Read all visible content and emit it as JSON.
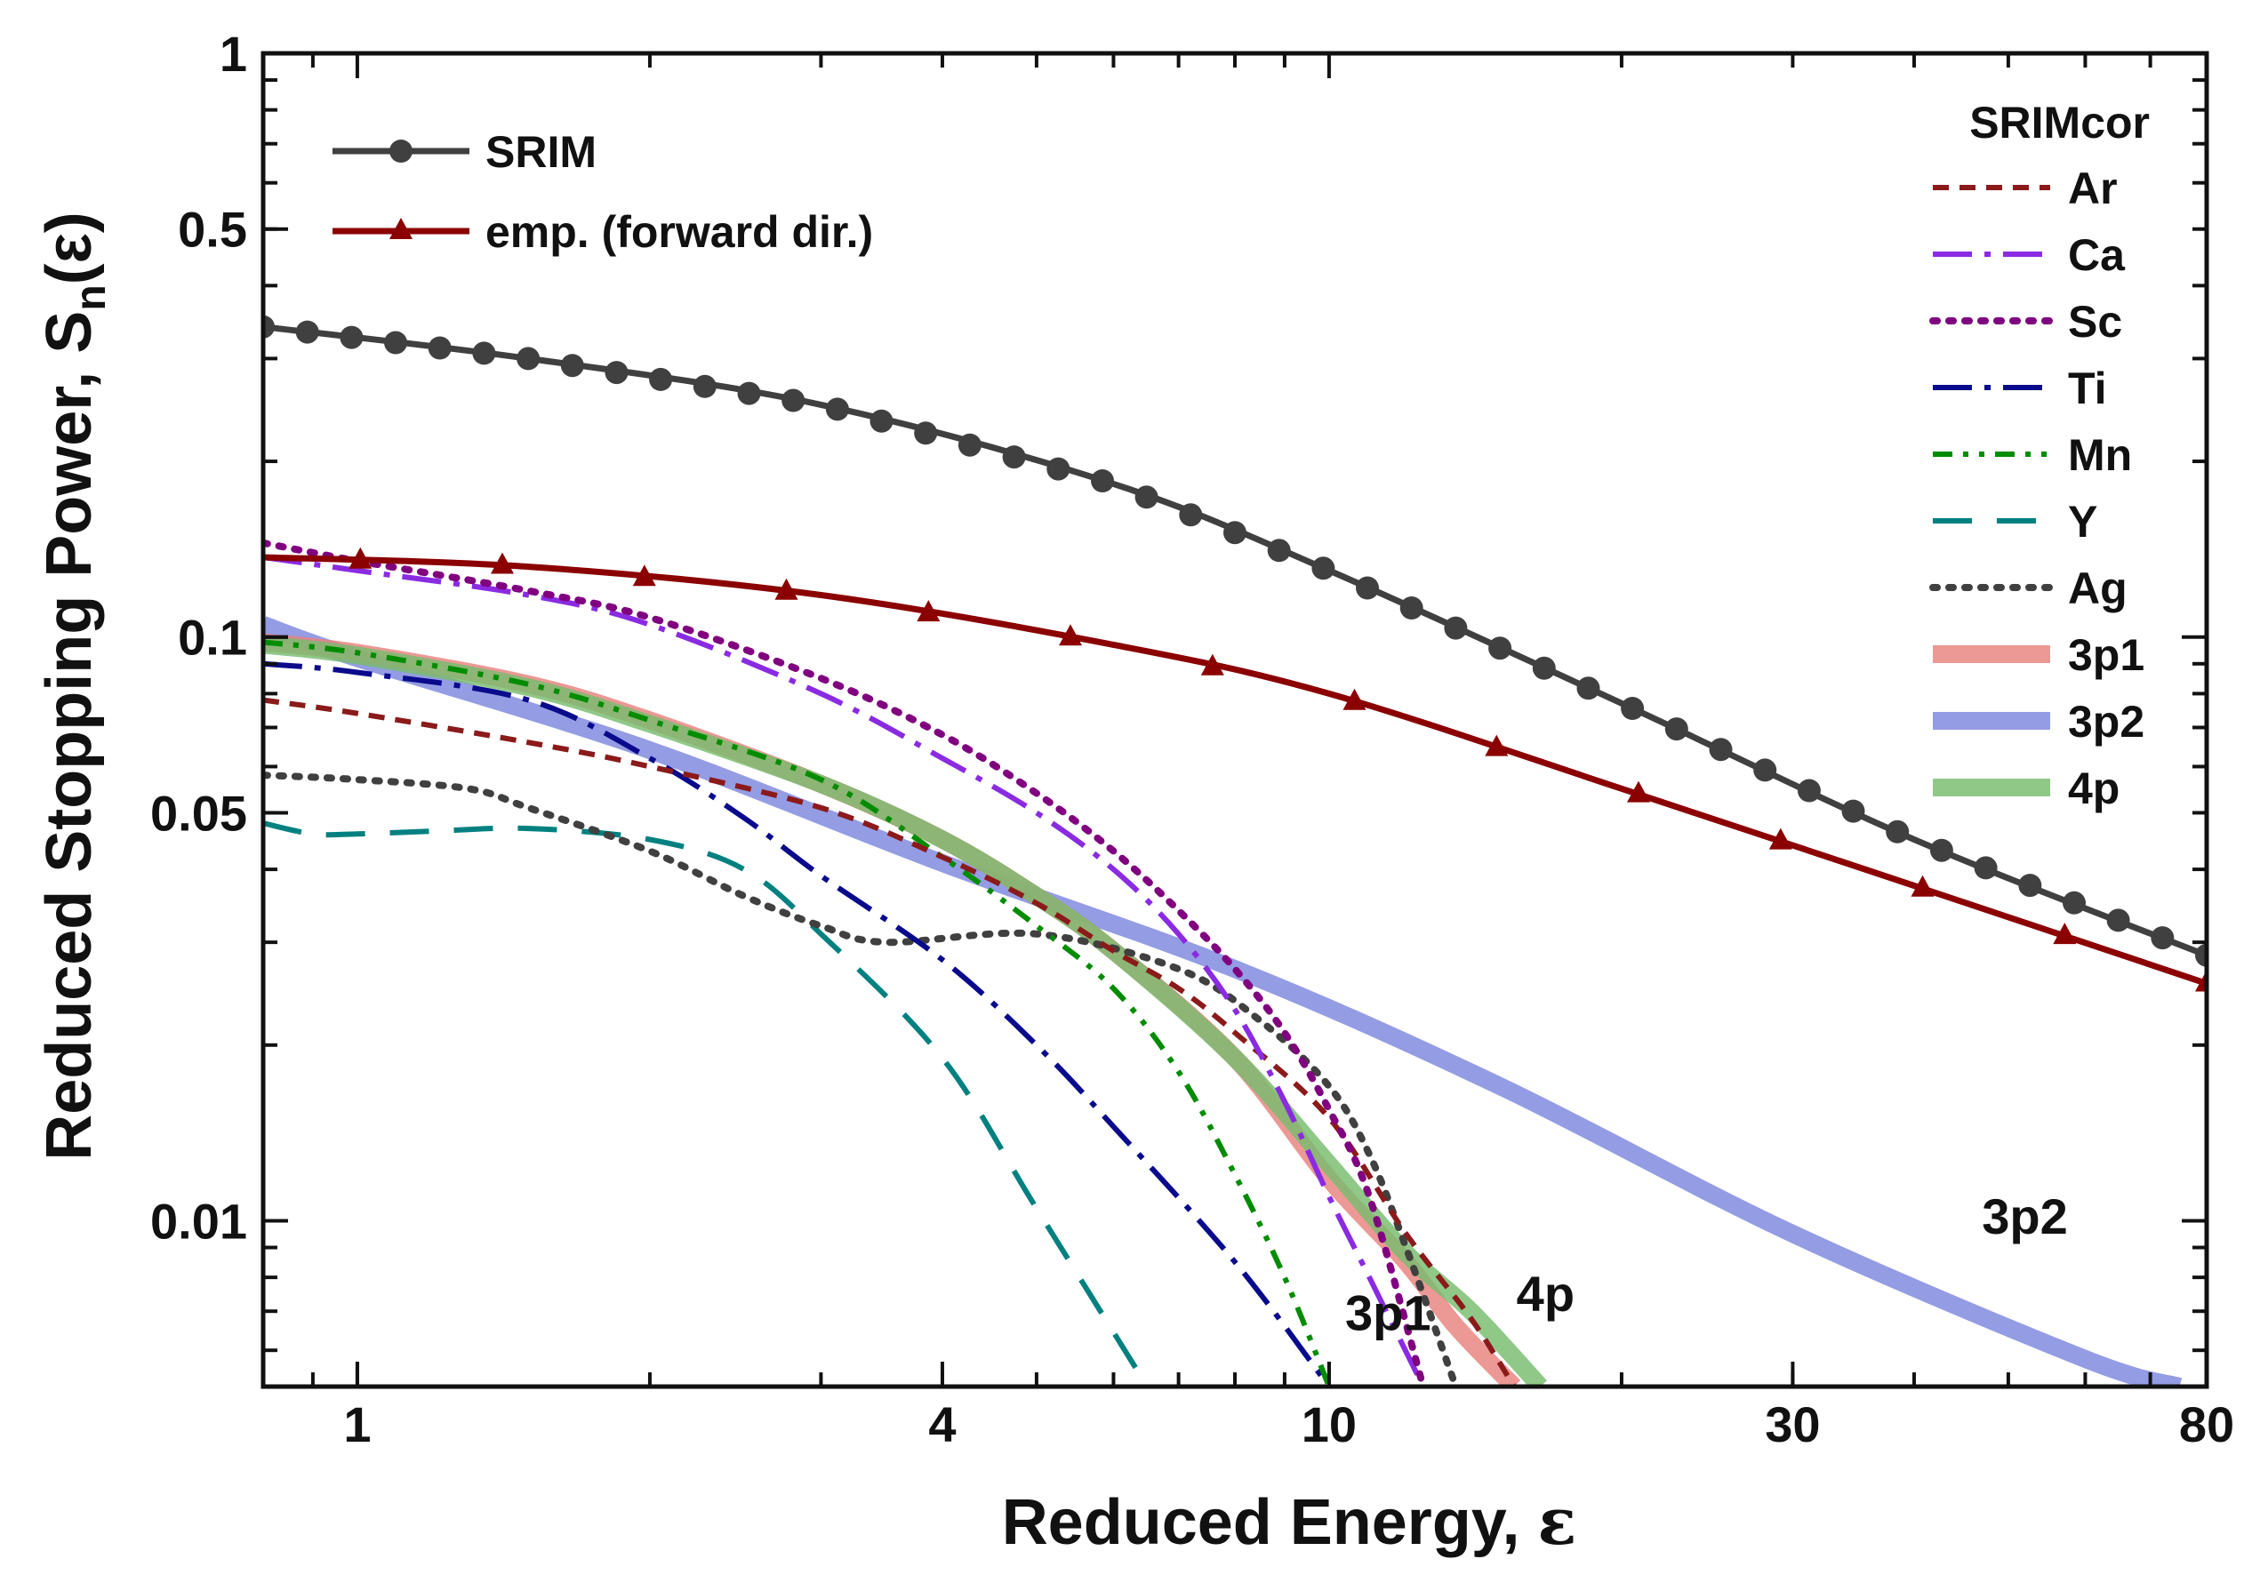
{
  "chart_data": {
    "type": "line",
    "xlabel_main": "Reduced Energy, ",
    "xlabel_symbol": "ε",
    "ylabel_main": "Reduced Stopping Power, S",
    "ylabel_sub": "n",
    "ylabel_tail": "(ε)",
    "x_scale": "log",
    "y_scale": "log",
    "xlim": [
      0.8,
      80
    ],
    "ylim": [
      0.0052,
      1
    ],
    "x_ticks": [
      {
        "value": 1,
        "label": "1"
      },
      {
        "value": 4,
        "label": "4"
      },
      {
        "value": 10,
        "label": "10"
      },
      {
        "value": 30,
        "label": "30"
      },
      {
        "value": 80,
        "label": "80"
      }
    ],
    "y_ticks": [
      {
        "value": 1,
        "label": "1"
      },
      {
        "value": 0.5,
        "label": "0.5"
      },
      {
        "value": 0.1,
        "label": "0.1"
      },
      {
        "value": 0.05,
        "label": "0.05"
      },
      {
        "value": 0.01,
        "label": "0.01"
      }
    ],
    "legend_main": {
      "placement": "top-left"
    },
    "legend_srimcor": {
      "placement": "top-right",
      "title": "SRIMcor"
    },
    "series": [
      {
        "name": "SRIM",
        "group": "main",
        "color": "#404040",
        "style": "solid-dots",
        "x": [
          0.8,
          1.5,
          3,
          6,
          10,
          20,
          40,
          80
        ],
        "y": [
          0.34,
          0.3,
          0.25,
          0.183,
          0.13,
          0.077,
          0.045,
          0.0285
        ]
      },
      {
        "name": "emp. (forward dir.)",
        "group": "main",
        "color": "#8b0000",
        "style": "solid-triangles",
        "x": [
          0.8,
          1.5,
          3,
          6,
          10,
          20,
          40,
          80
        ],
        "y": [
          0.137,
          0.132,
          0.118,
          0.097,
          0.08,
          0.055,
          0.0375,
          0.0255
        ]
      },
      {
        "name": "Ar",
        "group": "srimcor",
        "color": "#8b1a1a",
        "style": "dash",
        "x": [
          0.8,
          1,
          1.5,
          2,
          3,
          4,
          5,
          6,
          7,
          8,
          10,
          12,
          14,
          15.5
        ],
        "y": [
          0.078,
          0.074,
          0.066,
          0.06,
          0.051,
          0.042,
          0.035,
          0.029,
          0.025,
          0.021,
          0.015,
          0.0095,
          0.0068,
          0.0052
        ]
      },
      {
        "name": "Ca",
        "group": "srimcor",
        "color": "#8a2be2",
        "style": "dashdot",
        "x": [
          0.8,
          1,
          1.5,
          2,
          3,
          4,
          5,
          6,
          7,
          8,
          9,
          10,
          11,
          12.5
        ],
        "y": [
          0.137,
          0.13,
          0.118,
          0.105,
          0.08,
          0.062,
          0.05,
          0.04,
          0.031,
          0.023,
          0.016,
          0.011,
          0.008,
          0.0052
        ]
      },
      {
        "name": "Sc",
        "group": "srimcor",
        "color": "#800080",
        "style": "dot",
        "x": [
          0.8,
          1,
          1.5,
          2,
          3,
          4,
          5,
          6,
          7,
          8,
          9,
          10,
          11,
          12.5
        ],
        "y": [
          0.145,
          0.135,
          0.12,
          0.108,
          0.085,
          0.068,
          0.054,
          0.043,
          0.034,
          0.027,
          0.021,
          0.0155,
          0.011,
          0.0052
        ]
      },
      {
        "name": "Ti",
        "group": "srimcor",
        "color": "#0a0a8c",
        "style": "dashdot",
        "x": [
          0.8,
          1,
          1.5,
          2,
          2.5,
          3,
          4,
          5,
          6,
          8,
          10
        ],
        "y": [
          0.09,
          0.087,
          0.078,
          0.062,
          0.049,
          0.039,
          0.028,
          0.02,
          0.0145,
          0.0085,
          0.0052
        ]
      },
      {
        "name": "Mn",
        "group": "srimcor",
        "color": "#008c00",
        "style": "dashdotdot",
        "x": [
          0.8,
          1,
          1.5,
          2,
          3,
          4,
          5,
          6,
          7,
          8,
          9,
          10
        ],
        "y": [
          0.098,
          0.094,
          0.083,
          0.072,
          0.057,
          0.042,
          0.032,
          0.025,
          0.018,
          0.012,
          0.008,
          0.0052
        ]
      },
      {
        "name": "Y",
        "group": "srimcor",
        "color": "#008080",
        "style": "longdash",
        "x": [
          0.8,
          0.9,
          1,
          1.2,
          1.5,
          2,
          2.5,
          3,
          4,
          5,
          6.5
        ],
        "y": [
          0.048,
          0.046,
          0.046,
          0.0465,
          0.047,
          0.045,
          0.04,
          0.031,
          0.019,
          0.0105,
          0.0052
        ]
      },
      {
        "name": "Ag",
        "group": "srimcor",
        "color": "#404040",
        "style": "dot",
        "x": [
          0.8,
          1,
          1.3,
          1.5,
          2,
          2.5,
          3,
          3.5,
          5,
          7,
          8.5,
          10,
          11,
          12,
          13.5
        ],
        "y": [
          0.058,
          0.057,
          0.055,
          0.051,
          0.043,
          0.036,
          0.032,
          0.03,
          0.031,
          0.027,
          0.022,
          0.017,
          0.013,
          0.009,
          0.0052
        ]
      },
      {
        "name": "3p1",
        "group": "srimcor",
        "color": "#e8817e",
        "style": "thick",
        "x": [
          0.8,
          1,
          1.5,
          2,
          3,
          4,
          5,
          6,
          8,
          10,
          12,
          13.5,
          15.5
        ],
        "y": [
          0.098,
          0.094,
          0.083,
          0.072,
          0.056,
          0.045,
          0.036,
          0.029,
          0.019,
          0.0118,
          0.0085,
          0.0066,
          0.0052
        ]
      },
      {
        "name": "3p2",
        "group": "srimcor",
        "color": "#7d86de",
        "style": "thick",
        "x": [
          0.8,
          1,
          2,
          4,
          8,
          15,
          30,
          60,
          75
        ],
        "y": [
          0.105,
          0.092,
          0.064,
          0.041,
          0.027,
          0.017,
          0.0095,
          0.0058,
          0.0052
        ]
      },
      {
        "name": "4p",
        "group": "srimcor",
        "color": "#78bc6e",
        "style": "thick",
        "x": [
          0.8,
          1,
          1.5,
          2,
          3,
          4,
          5,
          6,
          8,
          10,
          12,
          14,
          16.5
        ],
        "y": [
          0.097,
          0.093,
          0.082,
          0.071,
          0.056,
          0.045,
          0.036,
          0.029,
          0.019,
          0.0125,
          0.0088,
          0.007,
          0.0052
        ]
      }
    ],
    "annotations": [
      {
        "text": "3p1",
        "x": 11.5,
        "y": 0.0065
      },
      {
        "text": "4p",
        "x": 16.7,
        "y": 0.007
      },
      {
        "text": "3p2",
        "x": 52,
        "y": 0.0095
      }
    ]
  }
}
